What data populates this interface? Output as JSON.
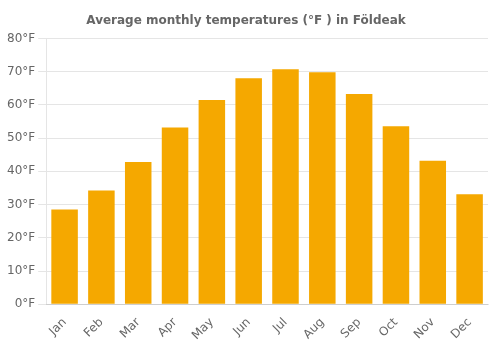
{
  "chart_data": {
    "type": "bar",
    "title": "Average monthly temperatures (°F ) in Földeak",
    "categories": [
      "Jan",
      "Feb",
      "Mar",
      "Apr",
      "May",
      "Jun",
      "Jul",
      "Aug",
      "Sep",
      "Oct",
      "Nov",
      "Dec"
    ],
    "values": [
      28.5,
      34.2,
      42.8,
      53.2,
      61.5,
      68.0,
      70.7,
      69.8,
      63.3,
      53.6,
      43.2,
      33.1
    ],
    "color": "#F5A800",
    "ylim": [
      0,
      80
    ],
    "yticks": [
      {
        "value": 0,
        "label": "0°F"
      },
      {
        "value": 10,
        "label": "10°F"
      },
      {
        "value": 20,
        "label": "20°F"
      },
      {
        "value": 30,
        "label": "30°F"
      },
      {
        "value": 40,
        "label": "40°F"
      },
      {
        "value": 50,
        "label": "50°F"
      },
      {
        "value": 60,
        "label": "60°F"
      },
      {
        "value": 70,
        "label": "70°F"
      },
      {
        "value": 80,
        "label": "80°F"
      }
    ],
    "grid": true
  }
}
